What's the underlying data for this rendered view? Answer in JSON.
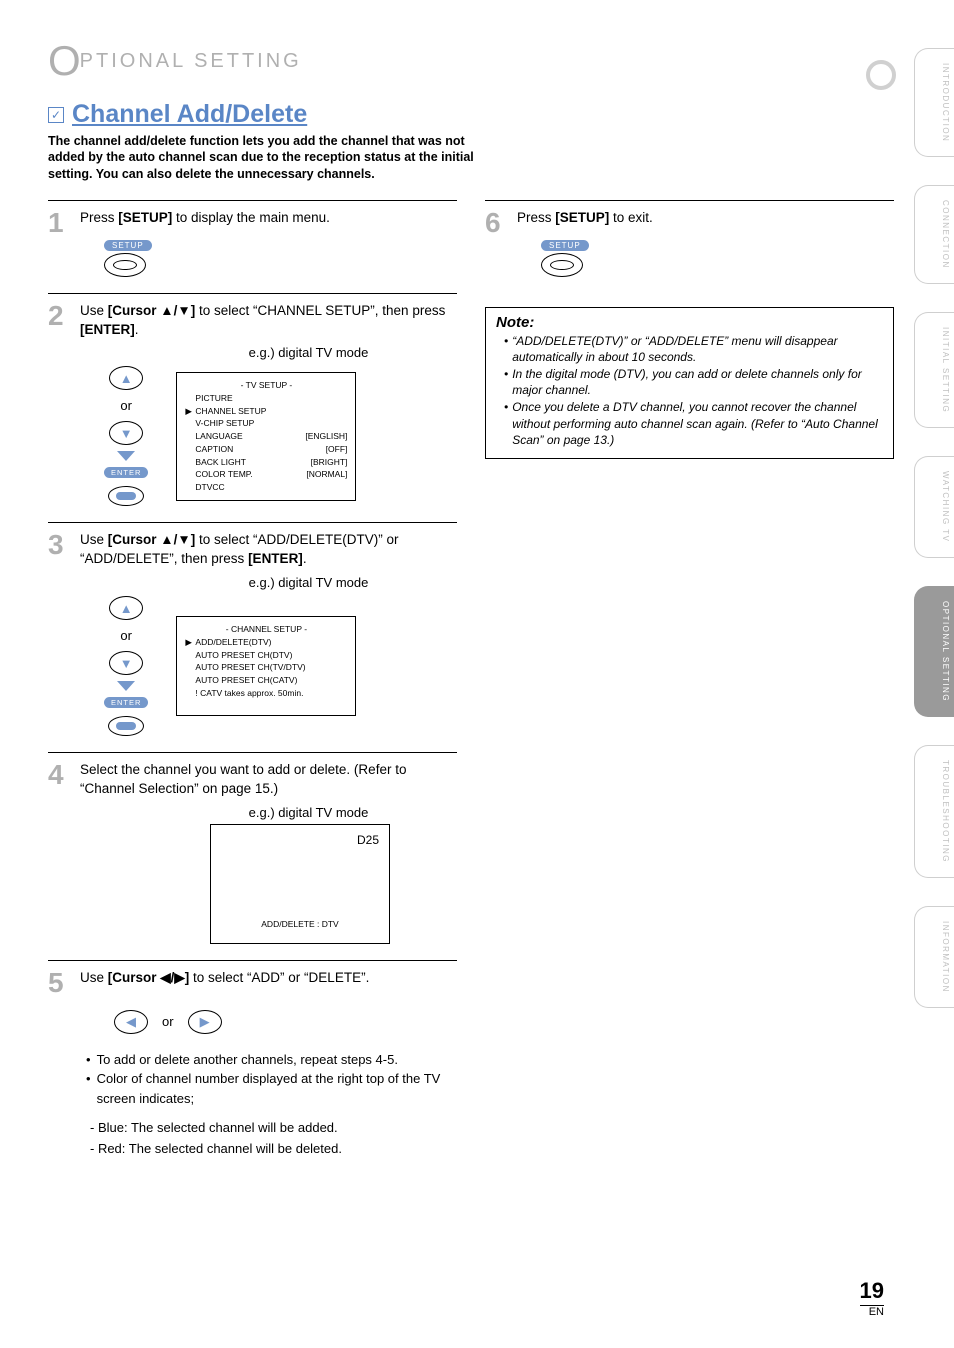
{
  "header": {
    "big_o": "O",
    "rest": "PTIONAL  SETTING"
  },
  "feature": {
    "title": "Channel Add/Delete",
    "intro": "The channel add/delete function lets you add the channel that was not added by the auto channel scan due to the reception status at the initial setting. You can also delete the unnecessary channels."
  },
  "colors": {
    "accent": "#5a86c6",
    "muted": "#b0b0b0",
    "tab_active": "#9a9a9a"
  },
  "steps": {
    "s1": {
      "num": "1",
      "text_pre": "Press ",
      "bold": "[SETUP]",
      "text_post": " to display the main menu.",
      "setup_label": "SETUP"
    },
    "s2": {
      "num": "2",
      "text_pre": "Use ",
      "bold1": "[Cursor ▲/▼]",
      "text_mid": " to select “CHANNEL SETUP”, then press ",
      "bold2": "[ENTER]",
      "text_post": ".",
      "eg": "e.g.) digital TV mode",
      "or": "or",
      "enter": "ENTER",
      "menu": {
        "title": "-  TV SETUP  -",
        "rows": [
          {
            "arrow": "",
            "lbl": "PICTURE",
            "val": ""
          },
          {
            "arrow": "▶",
            "lbl": "CHANNEL SETUP",
            "val": ""
          },
          {
            "arrow": "",
            "lbl": "V-CHIP  SETUP",
            "val": ""
          },
          {
            "arrow": "",
            "lbl": "LANGUAGE",
            "val": "[ENGLISH]"
          },
          {
            "arrow": "",
            "lbl": "CAPTION",
            "val": "[OFF]"
          },
          {
            "arrow": "",
            "lbl": "BACK  LIGHT",
            "val": "[BRIGHT]"
          },
          {
            "arrow": "",
            "lbl": "COLOR  TEMP.",
            "val": "[NORMAL]"
          },
          {
            "arrow": "",
            "lbl": "DTVCC",
            "val": ""
          }
        ]
      }
    },
    "s3": {
      "num": "3",
      "text_pre": "Use ",
      "bold1": "[Cursor ▲/▼]",
      "text_mid": " to select “ADD/DELETE(DTV)” or “ADD/DELETE”, then press ",
      "bold2": "[ENTER]",
      "text_post": ".",
      "eg": "e.g.) digital TV mode",
      "or": "or",
      "enter": "ENTER",
      "menu": {
        "title": "- CHANNEL SETUP -",
        "rows": [
          {
            "arrow": "▶",
            "lbl": "ADD/DELETE(DTV)",
            "val": ""
          },
          {
            "arrow": "",
            "lbl": "AUTO PRESET CH(DTV)",
            "val": ""
          },
          {
            "arrow": "",
            "lbl": "AUTO PRESET CH(TV/DTV)",
            "val": ""
          },
          {
            "arrow": "",
            "lbl": "AUTO PRESET CH(CATV)",
            "val": ""
          },
          {
            "arrow": "",
            "lbl": "! CATV takes approx. 50min.",
            "val": ""
          }
        ]
      }
    },
    "s4": {
      "num": "4",
      "text": "Select the channel you want to add or delete. (Refer to “Channel Selection” on page 15.)",
      "eg": "e.g.) digital TV mode",
      "d25": "D25",
      "caption": "ADD/DELETE : DTV"
    },
    "s5": {
      "num": "5",
      "text_pre": "Use ",
      "bold1": "[Cursor ◀/▶]",
      "text_post": " to select “ADD” or “DELETE”.",
      "or": "or",
      "bullets": [
        "To add or delete another channels, repeat steps 4-5.",
        "Color of channel number displayed at the right top of the TV screen indicates;"
      ],
      "sub": [
        "- Blue:  The selected channel will be added.",
        "- Red:   The selected channel will be deleted."
      ]
    },
    "s6": {
      "num": "6",
      "text_pre": "Press ",
      "bold": "[SETUP]",
      "text_post": " to exit.",
      "setup_label": "SETUP"
    }
  },
  "note": {
    "title": "Note:",
    "items": [
      "“ADD/DELETE(DTV)” or “ADD/DELETE” menu will disappear automatically in about 10 seconds.",
      "In the digital mode (DTV), you can add or delete channels only for major channel.",
      "Once you delete a DTV channel, you cannot recover the channel without performing auto channel scan again. (Refer to “Auto Channel Scan” on page 13.)"
    ]
  },
  "tabs": [
    "INTRODUCTION",
    "CONNECTION",
    "INITIAL  SETTING",
    "WATCHING  TV",
    "OPTIONAL  SETTING",
    "TROUBLESHOOTING",
    "INFORMATION"
  ],
  "active_tab_index": 4,
  "page": {
    "num": "19",
    "en": "EN"
  }
}
